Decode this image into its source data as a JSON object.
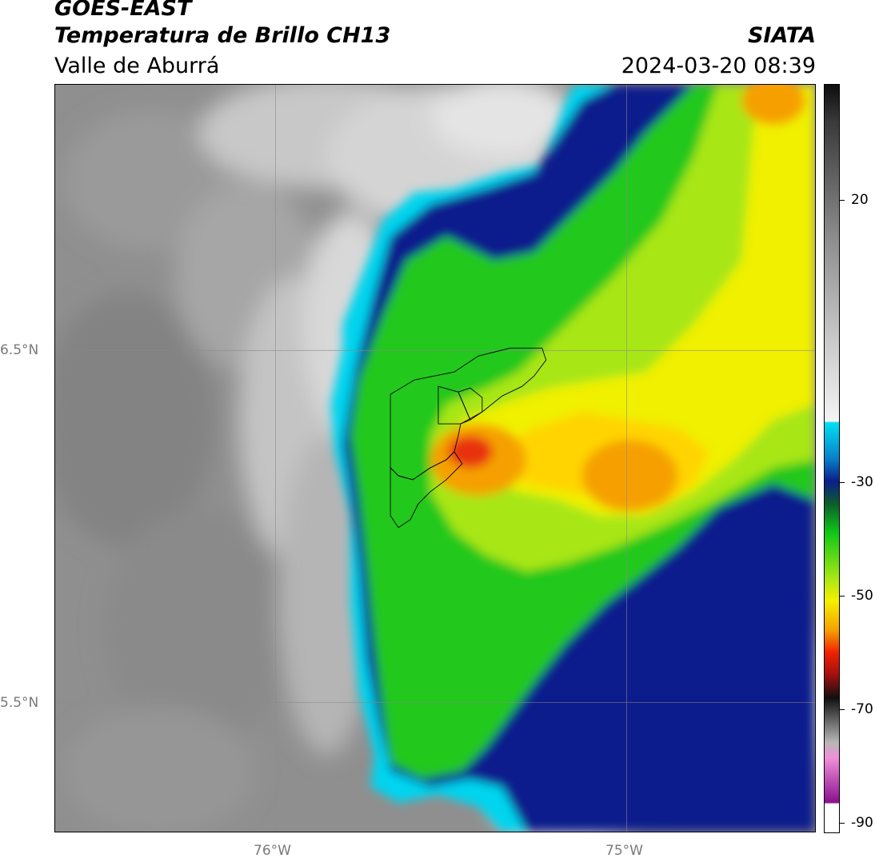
{
  "header": {
    "title": "GOES-EAST",
    "subtitle": "Temperatura de Brillo CH13",
    "region": "Valle de Aburrá",
    "institution": "SIATA",
    "timestamp": "2024-03-20 08:39"
  },
  "map": {
    "lat_labels": [
      {
        "label": "6.5°N",
        "value": 6.5
      },
      {
        "label": "5.5°N",
        "value": 5.5
      }
    ],
    "lon_labels": [
      {
        "label": "76°W",
        "value": -76
      },
      {
        "label": "75°W",
        "value": -75
      }
    ]
  },
  "colorbar": {
    "tick_labels": [
      {
        "label": "20",
        "value": 20
      },
      {
        "label": "-30",
        "value": -30
      },
      {
        "label": "-50",
        "value": -50
      },
      {
        "label": "-70",
        "value": -70
      },
      {
        "label": "-90",
        "value": -90
      }
    ],
    "range": [
      -90,
      40
    ]
  },
  "colors": {
    "cloud_top_warm": "#8c8c8c",
    "cloud_light": "#e8e8e8",
    "cyan": "#00d8f0",
    "dark_blue": "#0a1f8c",
    "green": "#22c81e",
    "yellow": "#f5f000",
    "orange": "#f5a000",
    "red": "#e83010"
  }
}
